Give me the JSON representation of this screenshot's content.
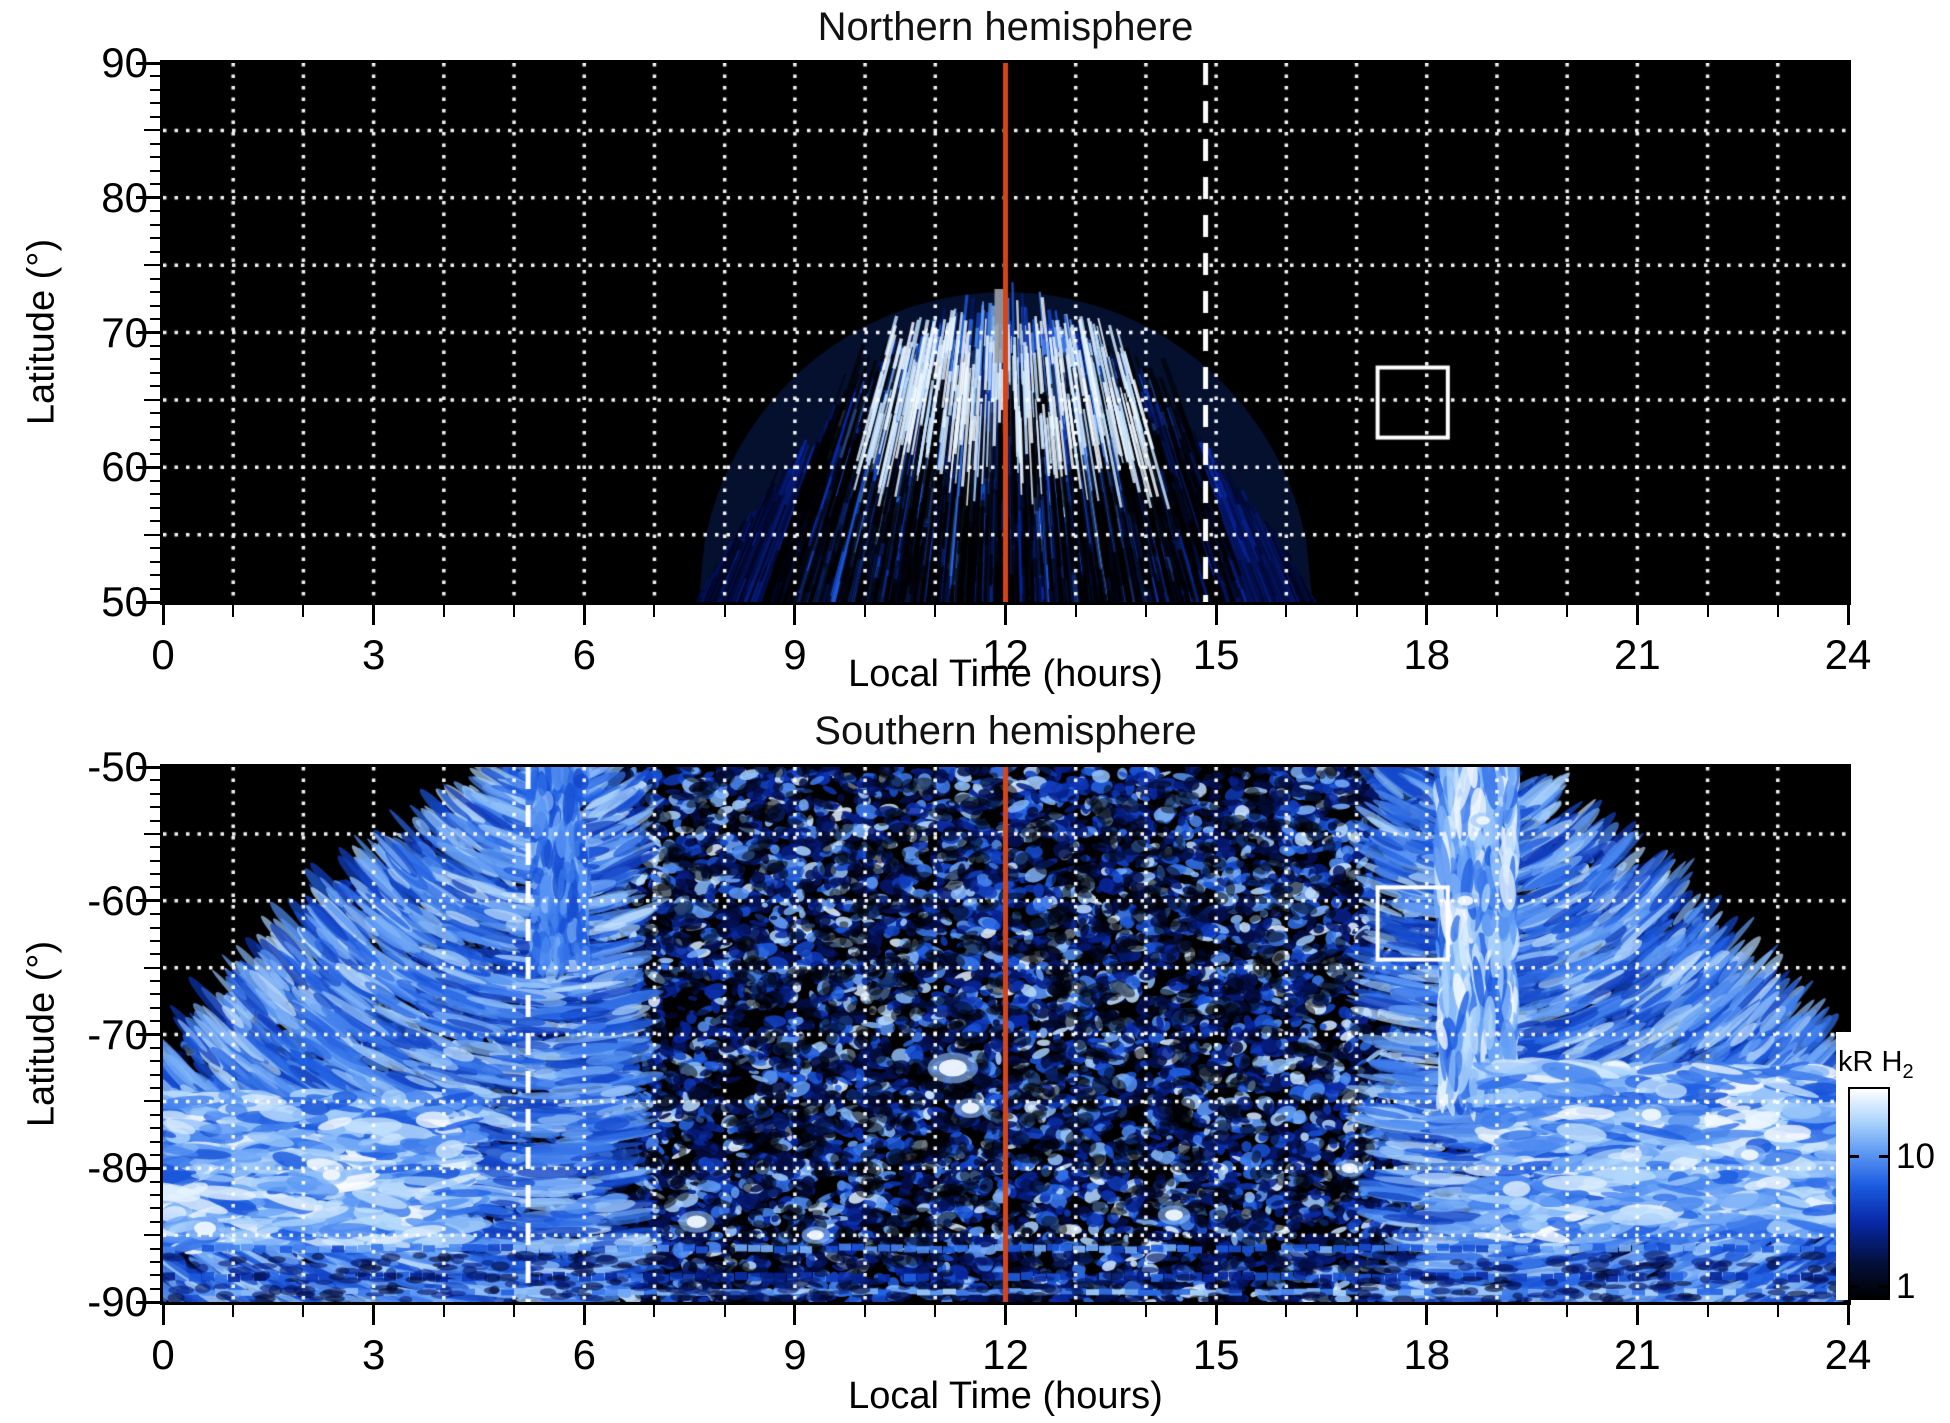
{
  "figure": {
    "background": "#ffffff",
    "plot_background": "#000000",
    "grid_color": "#ffffff",
    "axis_color": "#000000",
    "red_line_color": "#d5451a",
    "annotation_color": "#ffffff",
    "colorbar": {
      "label_main": "kR H",
      "label_sub": "2",
      "tick_labels": [
        "10",
        "1"
      ],
      "tick_values": [
        10,
        1
      ],
      "scale": "log",
      "value_min": 0.82,
      "value_max": 33
    }
  },
  "chart_data": [
    {
      "type": "heatmap",
      "title": "Northern hemisphere",
      "xlabel": "Local Time (hours)",
      "ylabel": "Latitude (°)",
      "xlim": [
        0,
        24
      ],
      "ylim": [
        50,
        90
      ],
      "x_ticks": [
        0,
        3,
        6,
        9,
        12,
        15,
        18,
        21,
        24
      ],
      "x_tick_labels": [
        "0",
        "3",
        "6",
        "9",
        "12",
        "15",
        "18",
        "21",
        "24"
      ],
      "x_minor_tick_every": 1,
      "y_ticks": [
        90,
        80,
        70,
        60,
        50
      ],
      "y_tick_labels": [
        "90",
        "80",
        "70",
        "60",
        "50"
      ],
      "y_minor_tick_every": 1,
      "grid": {
        "x_every_hours": 1,
        "y_every_deg": 5,
        "style": "dotted",
        "color": "#ffffff"
      },
      "colormap": "black - dark blue - blue - light blue - white (kR H2 brightness, log scale ~1-30 kR)",
      "features": [
        "fan of radial auroral streaks centred on 12 h local time",
        "emission spans ~7.6-16.4 h at 50° latitude, apex ~73° at noon",
        "brightest light-blue/white band between ~62° and 70° latitude at 9-14 h",
        "dim mottled dark-blue emission below ~60° latitude",
        "grey streak just left of the red noon line near 70-73°",
        "no emission (black) elsewhere"
      ],
      "annotations": {
        "red_solid_line_lt": 12,
        "white_dashed_line_lt": 14.85,
        "white_box_lt": [
          17.3,
          18.3
        ],
        "white_box_lat": [
          62.2,
          67.4
        ]
      }
    },
    {
      "type": "heatmap",
      "title": "Southern hemisphere",
      "xlabel": "Local Time (hours)",
      "ylabel": "Latitude (°)",
      "xlim": [
        0,
        24
      ],
      "ylim": [
        -90,
        -50
      ],
      "x_ticks": [
        0,
        3,
        6,
        9,
        12,
        15,
        18,
        21,
        24
      ],
      "x_tick_labels": [
        "0",
        "3",
        "6",
        "9",
        "12",
        "15",
        "18",
        "21",
        "24"
      ],
      "x_minor_tick_every": 1,
      "y_ticks": [
        -50,
        -60,
        -70,
        -80,
        -90
      ],
      "y_tick_labels": [
        "-50",
        "-60",
        "-70",
        "-80",
        "-90"
      ],
      "y_minor_tick_every": 1,
      "grid": {
        "x_every_hours": 1,
        "y_every_deg": 5,
        "style": "dotted",
        "color": "#ffffff"
      },
      "colormap": "black - dark blue - blue - light blue - white (kR H2 brightness, log scale ~1-30 kR)",
      "features": [
        "speckled patchy emission covering most of the map",
        "black (no data) wedges at top-left (0-5 h) and top-right (19-24 h) above ~-72°",
        "curved streaky flanks near 0-5 h and 19-24 h",
        "bright vertical band near 18.2-19.2 h from -50° down to ~-72°",
        "bright patches near 0-4 h and 19.5-24 h below ~-74°",
        "horizontal banded structure below ~-85.5° with bright thin line near -89.5°",
        "white blobs, e.g. near 11.3 h / -72.5°"
      ],
      "annotations": {
        "red_solid_line_lt": 12,
        "white_dashed_line_lt": 5.2,
        "white_box_lt": [
          17.3,
          18.3
        ],
        "white_box_lat": [
          -64.4,
          -59.0
        ]
      }
    }
  ]
}
